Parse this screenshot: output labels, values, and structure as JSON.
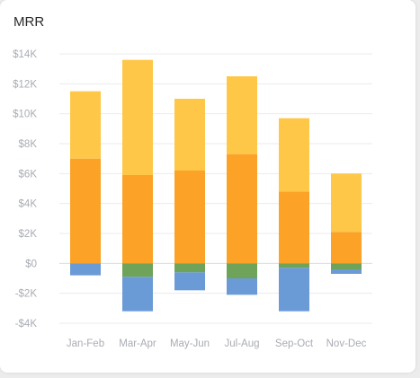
{
  "card": {
    "title": "MRR"
  },
  "chart_data": {
    "type": "bar",
    "stacked": true,
    "title": "MRR",
    "xlabel": "",
    "ylabel": "",
    "categories": [
      "Jan-Feb",
      "Mar-Apr",
      "May-Jun",
      "Jul-Aug",
      "Sep-Oct",
      "Nov-Dec"
    ],
    "ylim": [
      -4000,
      14000
    ],
    "yticks": [
      14000,
      12000,
      10000,
      8000,
      6000,
      4000,
      2000,
      0,
      -2000,
      -4000
    ],
    "ytick_labels": [
      "$14K",
      "$12K",
      "$10K",
      "$8K",
      "$6K",
      "$4K",
      "$2K",
      "$0",
      "-$2K",
      "-$4K"
    ],
    "grid": true,
    "legend": "none",
    "positive_series": [
      {
        "color": "#FBA227",
        "values": [
          7000,
          5900,
          6200,
          7300,
          4800,
          2100
        ]
      },
      {
        "color": "#FFC747",
        "values": [
          4500,
          7700,
          4800,
          5200,
          4900,
          3900
        ]
      }
    ],
    "negative_series": [
      {
        "color": "#6FA35A",
        "values": [
          0,
          -900,
          -600,
          -1000,
          -300,
          -400
        ]
      },
      {
        "color": "#6B9BD6",
        "values": [
          -800,
          -2300,
          -1200,
          -1100,
          -2900,
          -300
        ]
      }
    ]
  }
}
